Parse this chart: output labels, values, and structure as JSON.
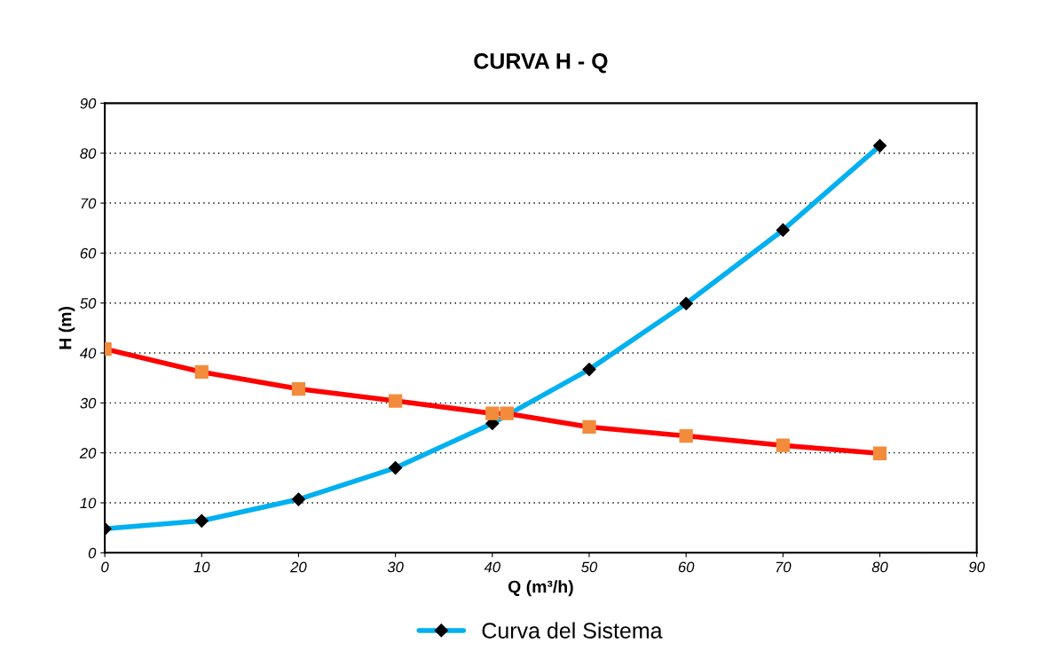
{
  "chart_data": {
    "type": "line",
    "title": "CURVA H - Q",
    "xlabel": "Q (m³/h)",
    "ylabel": "H (m)",
    "xlim": [
      0,
      90
    ],
    "xticks": [
      0,
      10,
      20,
      30,
      40,
      50,
      60,
      70,
      80,
      90
    ],
    "ylim": [
      0,
      90
    ],
    "yticks": [
      0,
      10,
      20,
      30,
      40,
      50,
      60,
      70,
      80,
      90
    ],
    "grid": "y",
    "legend": "bottom",
    "series": [
      {
        "name": "Curva del Sistema",
        "color": "#00b0f0",
        "marker": "diamond",
        "x": [
          0,
          10,
          20,
          30,
          40,
          50,
          60,
          70,
          80
        ],
        "values": [
          4.8,
          6.4,
          10.7,
          17.0,
          25.9,
          36.7,
          49.9,
          64.6,
          81.5
        ]
      },
      {
        "color": "#ff0000",
        "marker": "square",
        "x": [
          0,
          10,
          20,
          30,
          40,
          41.5,
          50,
          60,
          70,
          80
        ],
        "values": [
          40.8,
          36.2,
          32.8,
          30.4,
          27.9,
          27.9,
          25.2,
          23.4,
          21.5,
          19.9
        ]
      }
    ]
  }
}
